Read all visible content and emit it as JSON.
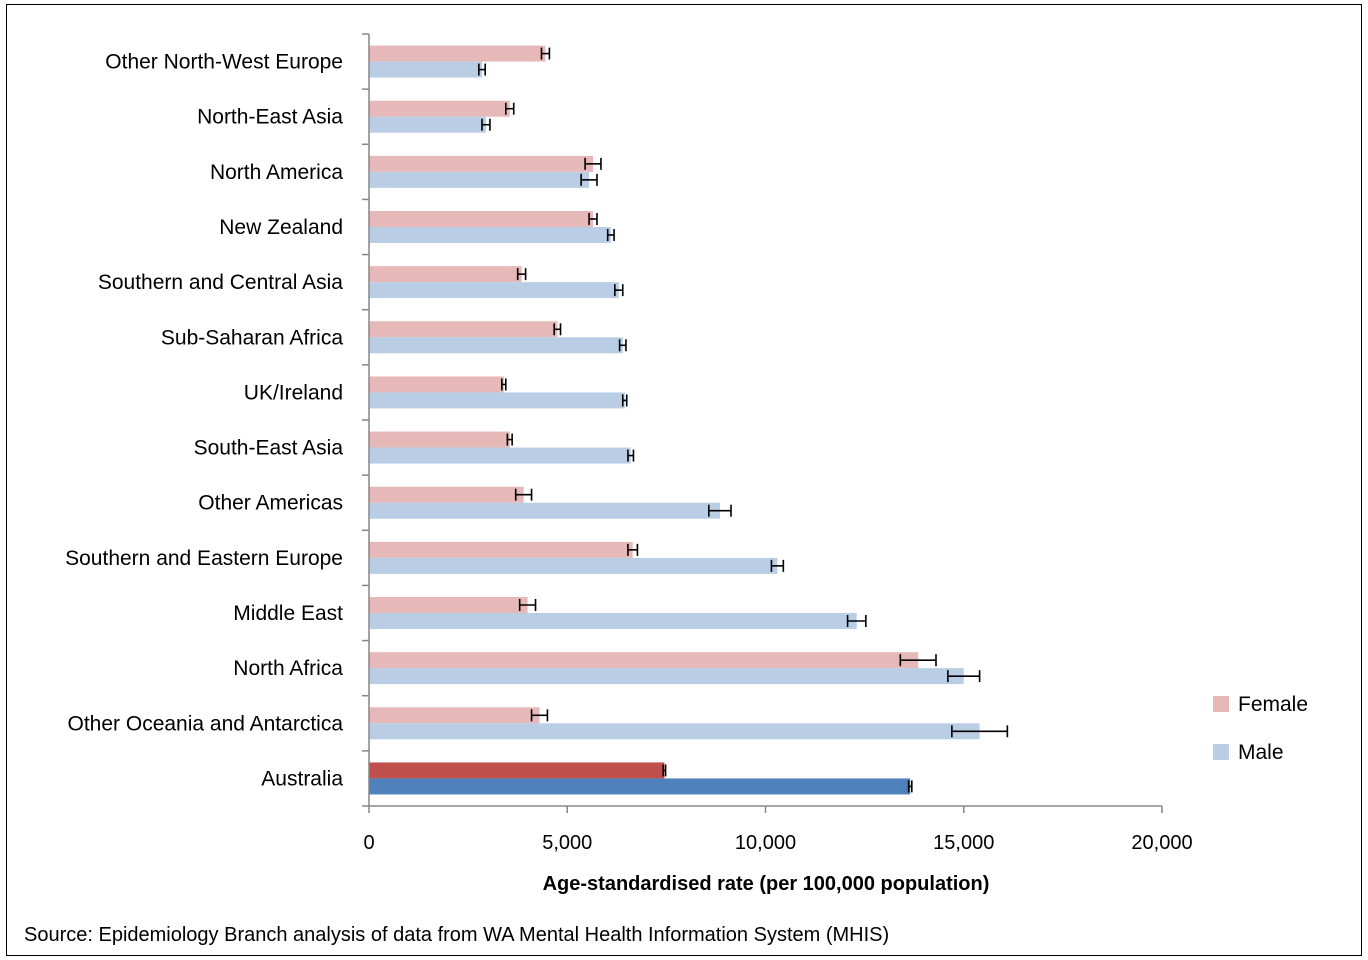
{
  "chart_data": {
    "type": "bar",
    "orientation": "horizontal",
    "categories": [
      "Other North-West Europe",
      "North-East Asia",
      "North America",
      "New Zealand",
      "Southern and Central Asia",
      "Sub-Saharan Africa",
      "UK/Ireland",
      "South-East Asia",
      "Other Americas",
      "Southern and Eastern Europe",
      "Middle East",
      "North Africa",
      "Other Oceania and Antarctica",
      "Australia"
    ],
    "series": [
      {
        "name": "Female",
        "color": "#e6b9b8",
        "highlight_color": "#c0504d",
        "values": [
          4450,
          3550,
          5650,
          5650,
          3850,
          4750,
          3400,
          3550,
          3900,
          6650,
          4000,
          13850,
          4300,
          7450
        ],
        "error": [
          100,
          100,
          200,
          100,
          100,
          80,
          50,
          60,
          200,
          120,
          200,
          450,
          200,
          30
        ]
      },
      {
        "name": "Male",
        "color": "#b9cde5",
        "highlight_color": "#4f81bd",
        "values": [
          2850,
          2950,
          5550,
          6100,
          6300,
          6400,
          6450,
          6600,
          8850,
          10300,
          12300,
          15000,
          15400,
          13650
        ],
        "error": [
          80,
          100,
          200,
          80,
          100,
          80,
          50,
          70,
          280,
          150,
          230,
          400,
          700,
          40
        ]
      }
    ],
    "highlight_category": "Australia",
    "x_ticks": [
      "0",
      "5,000",
      "10,000",
      "15,000",
      "20,000"
    ],
    "xlim": [
      0,
      20000
    ],
    "xlabel": "Age-standardised rate (per 100,000 population)",
    "legend": [
      "Female",
      "Male"
    ],
    "legend_position": "right",
    "grid": false
  },
  "source_note": "Source: Epidemiology Branch analysis of data from WA Mental Health Information System (MHIS)"
}
